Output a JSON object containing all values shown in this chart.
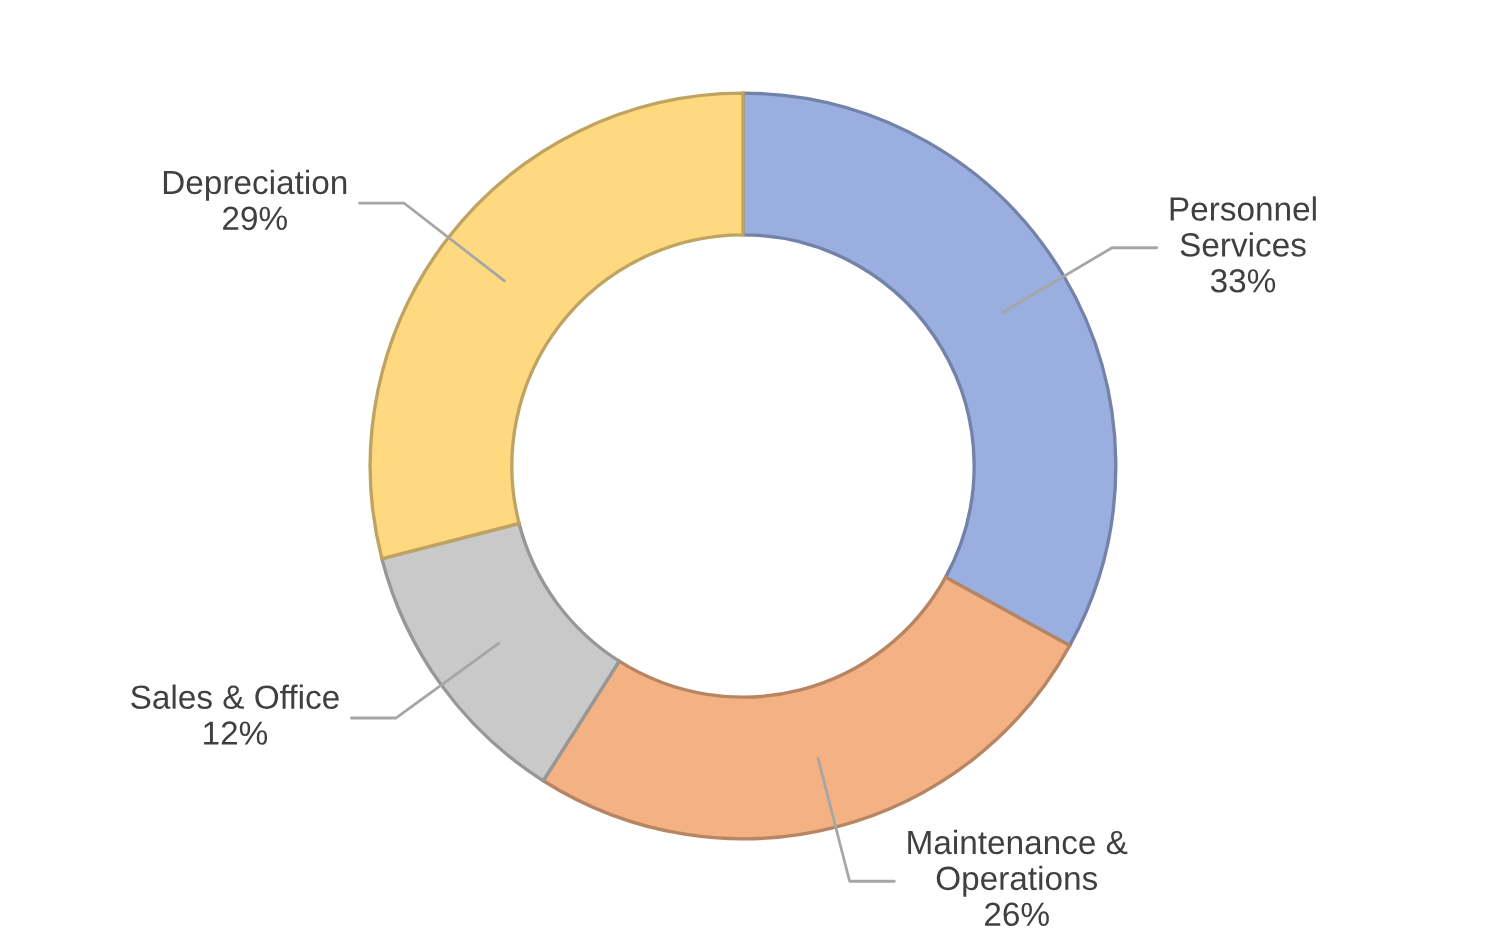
{
  "chart_data": {
    "type": "donut",
    "categories": [
      "Personnel\nServices",
      "Maintenance &\nOperations",
      "Sales & Office",
      "Depreciation"
    ],
    "values": [
      33,
      26,
      12,
      29
    ],
    "value_labels": [
      "33%",
      "26%",
      "12%",
      "29%"
    ],
    "colors": [
      "#9aaee0",
      "#f4b183",
      "#c9c9c9",
      "#ffd980"
    ],
    "legend": false
  }
}
